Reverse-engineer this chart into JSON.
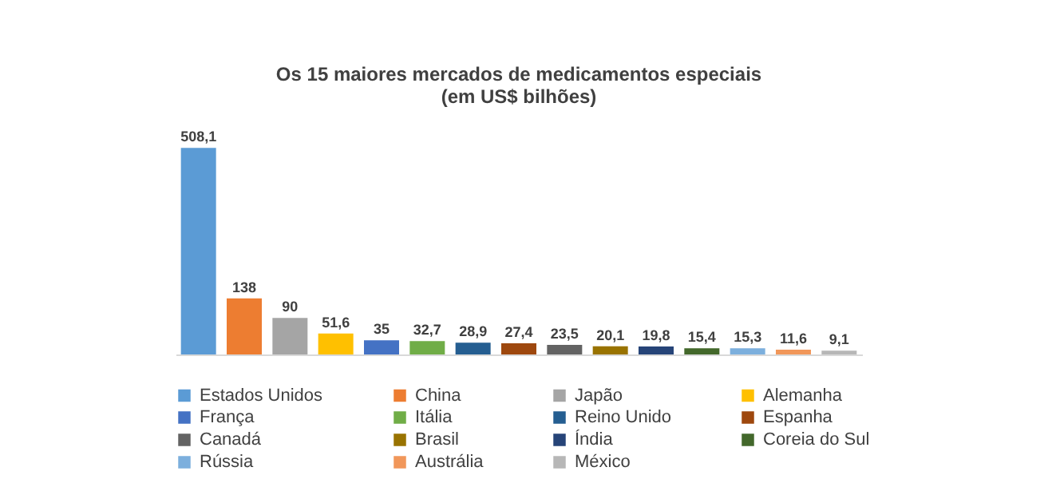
{
  "chart_data": {
    "type": "bar",
    "title": [
      "Os 15 maiores mercados de medicamentos especiais",
      "(em US$ bilhões)"
    ],
    "categories": [
      null,
      null,
      null,
      null,
      null,
      null,
      null,
      null,
      null,
      null,
      null,
      null,
      null,
      null,
      null
    ],
    "series": [
      {
        "name": "Estados Unidos",
        "color": "#5b9bd5",
        "values": [
          508.1,
          null,
          null,
          null,
          null,
          null,
          null,
          null,
          null,
          null,
          null,
          null,
          null,
          null,
          null
        ],
        "value_labels": [
          "508,1",
          null,
          null,
          null,
          null,
          null,
          null,
          null,
          null,
          null,
          null,
          null,
          null,
          null,
          null
        ]
      },
      {
        "name": "China",
        "color": "#ed7d31",
        "values": [
          null,
          138,
          null,
          null,
          null,
          null,
          null,
          null,
          null,
          null,
          null,
          null,
          null,
          null,
          null
        ],
        "value_labels": [
          null,
          "138",
          null,
          null,
          null,
          null,
          null,
          null,
          null,
          null,
          null,
          null,
          null,
          null,
          null
        ]
      },
      {
        "name": "Japão",
        "color": "#a5a5a5",
        "values": [
          null,
          null,
          90,
          null,
          null,
          null,
          null,
          null,
          null,
          null,
          null,
          null,
          null,
          null,
          null
        ],
        "value_labels": [
          null,
          null,
          "90",
          null,
          null,
          null,
          null,
          null,
          null,
          null,
          null,
          null,
          null,
          null,
          null
        ]
      },
      {
        "name": "Alemanha",
        "color": "#ffc000",
        "values": [
          null,
          null,
          null,
          51.6,
          null,
          null,
          null,
          null,
          null,
          null,
          null,
          null,
          null,
          null,
          null
        ],
        "value_labels": [
          null,
          null,
          null,
          "51,6",
          null,
          null,
          null,
          null,
          null,
          null,
          null,
          null,
          null,
          null,
          null
        ]
      },
      {
        "name": "França",
        "color": "#4472c4",
        "values": [
          null,
          null,
          null,
          null,
          35,
          null,
          null,
          null,
          null,
          null,
          null,
          null,
          null,
          null,
          null
        ],
        "value_labels": [
          null,
          null,
          null,
          null,
          "35",
          null,
          null,
          null,
          null,
          null,
          null,
          null,
          null,
          null,
          null
        ]
      },
      {
        "name": "Itália",
        "color": "#70ad47",
        "values": [
          null,
          null,
          null,
          null,
          null,
          32.7,
          null,
          null,
          null,
          null,
          null,
          null,
          null,
          null,
          null
        ],
        "value_labels": [
          null,
          null,
          null,
          null,
          null,
          "32,7",
          null,
          null,
          null,
          null,
          null,
          null,
          null,
          null,
          null
        ]
      },
      {
        "name": "Reino Unido",
        "color": "#255e91",
        "values": [
          null,
          null,
          null,
          null,
          null,
          null,
          28.9,
          null,
          null,
          null,
          null,
          null,
          null,
          null,
          null
        ],
        "value_labels": [
          null,
          null,
          null,
          null,
          null,
          null,
          "28,9",
          null,
          null,
          null,
          null,
          null,
          null,
          null,
          null
        ]
      },
      {
        "name": "Espanha",
        "color": "#9e480e",
        "values": [
          null,
          null,
          null,
          null,
          null,
          null,
          null,
          27.4,
          null,
          null,
          null,
          null,
          null,
          null,
          null
        ],
        "value_labels": [
          null,
          null,
          null,
          null,
          null,
          null,
          null,
          "27,4",
          null,
          null,
          null,
          null,
          null,
          null,
          null
        ]
      },
      {
        "name": "Canadá",
        "color": "#636363",
        "values": [
          null,
          null,
          null,
          null,
          null,
          null,
          null,
          null,
          23.5,
          null,
          null,
          null,
          null,
          null,
          null
        ],
        "value_labels": [
          null,
          null,
          null,
          null,
          null,
          null,
          null,
          null,
          "23,5",
          null,
          null,
          null,
          null,
          null,
          null
        ]
      },
      {
        "name": "Brasil",
        "color": "#997300",
        "values": [
          null,
          null,
          null,
          null,
          null,
          null,
          null,
          null,
          null,
          20.1,
          null,
          null,
          null,
          null,
          null
        ],
        "value_labels": [
          null,
          null,
          null,
          null,
          null,
          null,
          null,
          null,
          null,
          "20,1",
          null,
          null,
          null,
          null,
          null
        ]
      },
      {
        "name": "Índia",
        "color": "#264478",
        "values": [
          null,
          null,
          null,
          null,
          null,
          null,
          null,
          null,
          null,
          null,
          19.8,
          null,
          null,
          null,
          null
        ],
        "value_labels": [
          null,
          null,
          null,
          null,
          null,
          null,
          null,
          null,
          null,
          null,
          "19,8",
          null,
          null,
          null,
          null
        ]
      },
      {
        "name": "Coreia do Sul",
        "color": "#43682b",
        "values": [
          null,
          null,
          null,
          null,
          null,
          null,
          null,
          null,
          null,
          null,
          null,
          15.4,
          null,
          null,
          null
        ],
        "value_labels": [
          null,
          null,
          null,
          null,
          null,
          null,
          null,
          null,
          null,
          null,
          null,
          "15,4",
          null,
          null,
          null
        ]
      },
      {
        "name": "Rússia",
        "color": "#7cafdd",
        "values": [
          null,
          null,
          null,
          null,
          null,
          null,
          null,
          null,
          null,
          null,
          null,
          null,
          15.3,
          null,
          null
        ],
        "value_labels": [
          null,
          null,
          null,
          null,
          null,
          null,
          null,
          null,
          null,
          null,
          null,
          null,
          "15,3",
          null,
          null
        ]
      },
      {
        "name": "Austrália",
        "color": "#f1975a",
        "values": [
          null,
          null,
          null,
          null,
          null,
          null,
          null,
          null,
          null,
          null,
          null,
          null,
          null,
          11.6,
          null
        ],
        "value_labels": [
          null,
          null,
          null,
          null,
          null,
          null,
          null,
          null,
          null,
          null,
          null,
          null,
          null,
          "11,6",
          null
        ]
      },
      {
        "name": "México",
        "color": "#b7b7b7",
        "values": [
          null,
          null,
          null,
          null,
          null,
          null,
          null,
          null,
          null,
          null,
          null,
          null,
          null,
          null,
          9.1
        ],
        "value_labels": [
          null,
          null,
          null,
          null,
          null,
          null,
          null,
          null,
          null,
          null,
          null,
          null,
          null,
          null,
          "9,1"
        ]
      }
    ],
    "stacked": true,
    "legend": "bottom"
  }
}
